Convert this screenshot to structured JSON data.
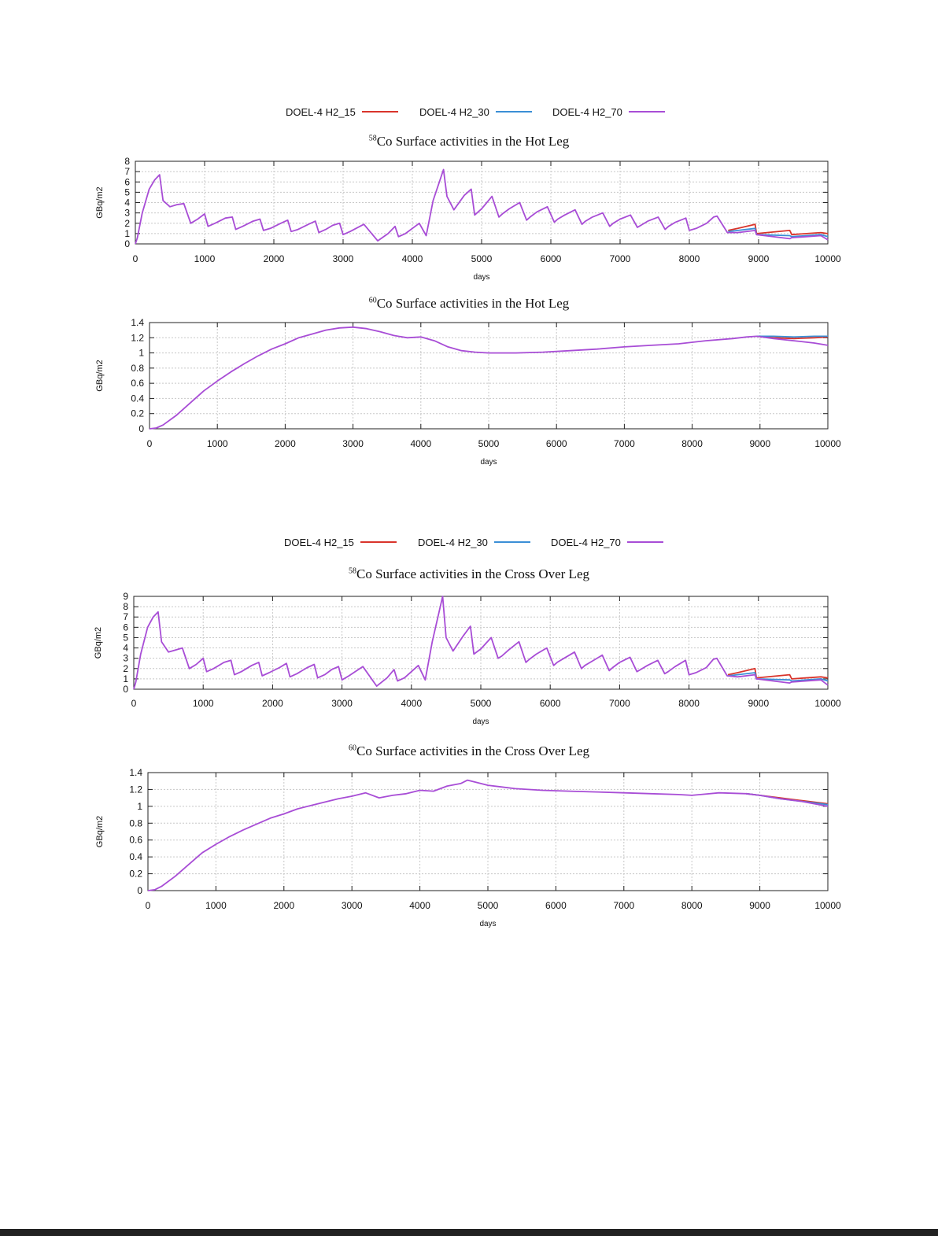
{
  "legends": [
    {
      "items": [
        {
          "label": "DOEL-4 H2_15",
          "color": "#d9342b"
        },
        {
          "label": "DOEL-4 H2_30",
          "color": "#3b8fd6"
        },
        {
          "label": "DOEL-4 H2_70",
          "color": "#a84dd6"
        }
      ]
    },
    {
      "items": [
        {
          "label": "DOEL-4 H2_15",
          "color": "#d9342b"
        },
        {
          "label": "DOEL-4 H2_30",
          "color": "#3b8fd6"
        },
        {
          "label": "DOEL-4 H2_70",
          "color": "#a84dd6"
        }
      ]
    }
  ],
  "chart_data": [
    {
      "type": "line",
      "title_sup": "58",
      "title": "Co Surface  activities in the Hot Leg",
      "xlabel": "days",
      "ylabel": "GBq/m2",
      "xlim": [
        0,
        10000
      ],
      "ylim": [
        0,
        8
      ],
      "xticks": [
        0,
        1000,
        2000,
        3000,
        4000,
        5000,
        6000,
        7000,
        8000,
        9000,
        10000
      ],
      "yticks": [
        0,
        1,
        2,
        3,
        4,
        5,
        6,
        7,
        8
      ],
      "xtick_labels": [
        "0",
        "1000",
        "2000",
        "3000",
        "4000",
        "5000",
        "6000",
        "7000",
        "8000",
        "9000",
        "10000"
      ],
      "ytick_labels": [
        "0",
        "1",
        "2",
        "3",
        "4",
        "5",
        "6",
        "7",
        "8"
      ],
      "grid": true,
      "series": [
        {
          "name": "DOEL-4 H2_15",
          "color": "#d9342b",
          "x": [
            8560,
            8700,
            8950,
            8970,
            9450,
            9480,
            9900,
            10000
          ],
          "y": [
            1.3,
            1.5,
            1.9,
            1.0,
            1.3,
            0.9,
            1.1,
            1.0
          ]
        },
        {
          "name": "DOEL-4 H2_30",
          "color": "#3b8fd6",
          "x": [
            8560,
            8700,
            8950,
            8970,
            9450,
            9480,
            9900,
            10000
          ],
          "y": [
            1.2,
            1.3,
            1.5,
            0.9,
            0.8,
            0.7,
            0.9,
            0.7
          ]
        },
        {
          "name": "DOEL-4 H2_70",
          "color": "#a84dd6",
          "x": [
            0,
            30,
            100,
            200,
            280,
            350,
            400,
            500,
            600,
            700,
            800,
            900,
            1000,
            1050,
            1150,
            1300,
            1400,
            1450,
            1550,
            1700,
            1800,
            1850,
            1950,
            2100,
            2200,
            2250,
            2350,
            2500,
            2600,
            2650,
            2750,
            2850,
            2950,
            3000,
            3100,
            3300,
            3500,
            3650,
            3750,
            3800,
            3900,
            4100,
            4200,
            4300,
            4450,
            4500,
            4600,
            4750,
            4850,
            4900,
            5000,
            5150,
            5250,
            5300,
            5400,
            5550,
            5650,
            5700,
            5800,
            5950,
            6050,
            6100,
            6200,
            6350,
            6450,
            6500,
            6600,
            6750,
            6850,
            6900,
            7000,
            7150,
            7250,
            7300,
            7400,
            7550,
            7650,
            7700,
            7800,
            7950,
            8000,
            8100,
            8250,
            8350,
            8400,
            8550,
            8700,
            8950,
            8970,
            9450,
            9480,
            9900,
            10000
          ],
          "y": [
            0,
            0.6,
            3.0,
            5.3,
            6.2,
            6.7,
            4.2,
            3.6,
            3.8,
            3.9,
            2.0,
            2.4,
            2.9,
            1.7,
            2.0,
            2.5,
            2.6,
            1.4,
            1.7,
            2.2,
            2.4,
            1.3,
            1.5,
            2.0,
            2.3,
            1.2,
            1.4,
            1.9,
            2.2,
            1.1,
            1.4,
            1.8,
            2.0,
            0.9,
            1.2,
            1.9,
            0.3,
            1.0,
            1.7,
            0.7,
            1.0,
            2.0,
            0.8,
            4.2,
            7.2,
            4.6,
            3.3,
            4.7,
            5.3,
            2.8,
            3.4,
            4.6,
            2.6,
            2.9,
            3.4,
            4.0,
            2.3,
            2.6,
            3.1,
            3.6,
            2.1,
            2.4,
            2.8,
            3.3,
            1.9,
            2.2,
            2.6,
            3.0,
            1.7,
            2.0,
            2.4,
            2.8,
            1.6,
            1.8,
            2.2,
            2.6,
            1.4,
            1.7,
            2.1,
            2.5,
            1.3,
            1.5,
            2.0,
            2.6,
            2.7,
            1.1,
            1.1,
            1.3,
            0.9,
            0.5,
            0.6,
            0.8,
            0.4
          ]
        }
      ]
    },
    {
      "type": "line",
      "title_sup": "60",
      "title": "Co Surface  activities in the Hot Leg",
      "xlabel": "days",
      "ylabel": "GBq/m2",
      "xlim": [
        0,
        10000
      ],
      "ylim": [
        0,
        1.4
      ],
      "xticks": [
        0,
        1000,
        2000,
        3000,
        4000,
        5000,
        6000,
        7000,
        8000,
        9000,
        10000
      ],
      "yticks": [
        0,
        0.2,
        0.4,
        0.6,
        0.8,
        1.0,
        1.2,
        1.4
      ],
      "xtick_labels": [
        "0",
        "1000",
        "2000",
        "3000",
        "4000",
        "5000",
        "6000",
        "7000",
        "8000",
        "9000",
        "10000"
      ],
      "ytick_labels": [
        "0",
        "0.2",
        "0.4",
        "0.6",
        "0.8",
        "1",
        "1.2",
        "1.4"
      ],
      "grid": true,
      "series": [
        {
          "name": "DOEL-4 H2_15",
          "color": "#d9342b",
          "x": [
            8950,
            9200,
            9500,
            9800,
            10000
          ],
          "y": [
            1.22,
            1.2,
            1.19,
            1.2,
            1.21
          ]
        },
        {
          "name": "DOEL-4 H2_30",
          "color": "#3b8fd6",
          "x": [
            8950,
            9200,
            9500,
            9800,
            10000
          ],
          "y": [
            1.22,
            1.22,
            1.21,
            1.22,
            1.22
          ]
        },
        {
          "name": "DOEL-4 H2_70",
          "color": "#a84dd6",
          "x": [
            0,
            100,
            200,
            400,
            600,
            800,
            1000,
            1200,
            1400,
            1600,
            1800,
            2000,
            2200,
            2400,
            2600,
            2800,
            3000,
            3200,
            3400,
            3600,
            3800,
            4000,
            4200,
            4400,
            4600,
            4800,
            5000,
            5400,
            5800,
            6200,
            6600,
            7000,
            7400,
            7800,
            8200,
            8600,
            8800,
            8950,
            9200,
            9500,
            9800,
            10000
          ],
          "y": [
            0,
            0.01,
            0.05,
            0.18,
            0.34,
            0.5,
            0.63,
            0.75,
            0.86,
            0.96,
            1.05,
            1.12,
            1.2,
            1.25,
            1.3,
            1.33,
            1.34,
            1.32,
            1.28,
            1.23,
            1.2,
            1.21,
            1.16,
            1.08,
            1.03,
            1.01,
            1.0,
            1.0,
            1.01,
            1.03,
            1.05,
            1.08,
            1.1,
            1.12,
            1.16,
            1.19,
            1.21,
            1.22,
            1.19,
            1.16,
            1.13,
            1.1
          ]
        }
      ]
    },
    {
      "type": "line",
      "title_sup": "58",
      "title": "Co Surface  activities in the Cross Over Leg",
      "xlabel": "days",
      "ylabel": "GBq/m2",
      "xlim": [
        0,
        10000
      ],
      "ylim": [
        0,
        9
      ],
      "xticks": [
        0,
        1000,
        2000,
        3000,
        4000,
        5000,
        6000,
        7000,
        8000,
        9000,
        10000
      ],
      "yticks": [
        0,
        1,
        2,
        3,
        4,
        5,
        6,
        7,
        8,
        9
      ],
      "xtick_labels": [
        "0",
        "1000",
        "2000",
        "3000",
        "4000",
        "5000",
        "6000",
        "7000",
        "8000",
        "9000",
        "10000"
      ],
      "ytick_labels": [
        "0",
        "1",
        "2",
        "3",
        "4",
        "5",
        "6",
        "7",
        "8",
        "9"
      ],
      "grid": true,
      "series": [
        {
          "name": "DOEL-4 H2_15",
          "color": "#d9342b",
          "x": [
            8560,
            8700,
            8950,
            8970,
            9450,
            9480,
            9900,
            10000
          ],
          "y": [
            1.4,
            1.6,
            2.0,
            1.1,
            1.4,
            1.0,
            1.2,
            1.1
          ]
        },
        {
          "name": "DOEL-4 H2_30",
          "color": "#3b8fd6",
          "x": [
            8560,
            8700,
            8950,
            8970,
            9450,
            9480,
            9900,
            10000
          ],
          "y": [
            1.3,
            1.4,
            1.6,
            1.0,
            0.9,
            0.8,
            1.0,
            0.8
          ]
        },
        {
          "name": "DOEL-4 H2_70",
          "color": "#a84dd6",
          "x": [
            0,
            30,
            100,
            200,
            280,
            350,
            400,
            500,
            600,
            700,
            800,
            900,
            1000,
            1050,
            1150,
            1300,
            1400,
            1450,
            1550,
            1700,
            1800,
            1850,
            1950,
            2100,
            2200,
            2250,
            2350,
            2500,
            2600,
            2650,
            2750,
            2850,
            2950,
            3000,
            3100,
            3300,
            3500,
            3650,
            3750,
            3800,
            3900,
            4100,
            4200,
            4300,
            4450,
            4500,
            4600,
            4750,
            4850,
            4900,
            5000,
            5150,
            5250,
            5300,
            5400,
            5550,
            5650,
            5700,
            5800,
            5950,
            6050,
            6100,
            6200,
            6350,
            6450,
            6500,
            6600,
            6750,
            6850,
            6900,
            7000,
            7150,
            7250,
            7300,
            7400,
            7550,
            7650,
            7700,
            7800,
            7950,
            8000,
            8100,
            8250,
            8350,
            8400,
            8550,
            8700,
            8950,
            8970,
            9450,
            9480,
            9900,
            10000
          ],
          "y": [
            0,
            0.7,
            3.4,
            6.0,
            7.0,
            7.5,
            4.6,
            3.6,
            3.8,
            4.0,
            2.0,
            2.4,
            3.0,
            1.7,
            2.0,
            2.6,
            2.8,
            1.4,
            1.7,
            2.3,
            2.6,
            1.3,
            1.6,
            2.1,
            2.5,
            1.2,
            1.5,
            2.1,
            2.4,
            1.1,
            1.4,
            1.9,
            2.2,
            0.9,
            1.3,
            2.2,
            0.3,
            1.1,
            1.9,
            0.8,
            1.1,
            2.3,
            0.9,
            4.6,
            9.0,
            5.0,
            3.7,
            5.2,
            6.1,
            3.4,
            3.9,
            5.0,
            3.0,
            3.2,
            3.8,
            4.6,
            2.6,
            2.9,
            3.4,
            4.0,
            2.3,
            2.6,
            3.0,
            3.6,
            2.0,
            2.3,
            2.7,
            3.3,
            1.8,
            2.1,
            2.6,
            3.1,
            1.7,
            1.9,
            2.3,
            2.8,
            1.5,
            1.7,
            2.2,
            2.8,
            1.4,
            1.6,
            2.1,
            2.9,
            3.0,
            1.3,
            1.2,
            1.4,
            1.0,
            0.6,
            0.7,
            0.9,
            0.4
          ]
        }
      ]
    },
    {
      "type": "line",
      "title_sup": "60",
      "title": "Co Surface  activities in the Cross Over Leg",
      "xlabel": "days",
      "ylabel": "GBq/m2",
      "xlim": [
        0,
        10000
      ],
      "ylim": [
        0,
        1.4
      ],
      "xticks": [
        0,
        1000,
        2000,
        3000,
        4000,
        5000,
        6000,
        7000,
        8000,
        9000,
        10000
      ],
      "yticks": [
        0,
        0.2,
        0.4,
        0.6,
        0.8,
        1.0,
        1.2,
        1.4
      ],
      "xtick_labels": [
        "0",
        "1000",
        "2000",
        "3000",
        "4000",
        "5000",
        "6000",
        "7000",
        "8000",
        "9000",
        "10000"
      ],
      "ytick_labels": [
        "0",
        "0.2",
        "0.4",
        "0.6",
        "0.8",
        "1",
        "1.2",
        "1.4"
      ],
      "grid": true,
      "series": [
        {
          "name": "DOEL-4 H2_15",
          "color": "#d9342b",
          "x": [
            8800,
            9000,
            9300,
            9600,
            10000
          ],
          "y": [
            1.15,
            1.13,
            1.1,
            1.07,
            1.03
          ]
        },
        {
          "name": "DOEL-4 H2_30",
          "color": "#3b8fd6",
          "x": [
            8800,
            9000,
            9300,
            9600,
            10000
          ],
          "y": [
            1.15,
            1.13,
            1.09,
            1.06,
            1.02
          ]
        },
        {
          "name": "DOEL-4 H2_70",
          "color": "#a84dd6",
          "x": [
            0,
            100,
            200,
            400,
            600,
            800,
            1000,
            1200,
            1400,
            1600,
            1800,
            2000,
            2200,
            2400,
            2600,
            2800,
            3000,
            3200,
            3400,
            3600,
            3800,
            4000,
            4200,
            4400,
            4600,
            4700,
            4800,
            5000,
            5400,
            5800,
            6200,
            6600,
            7000,
            7400,
            7800,
            8000,
            8400,
            8800,
            9000,
            9300,
            9600,
            10000
          ],
          "y": [
            0,
            0.01,
            0.05,
            0.17,
            0.31,
            0.45,
            0.55,
            0.64,
            0.72,
            0.79,
            0.86,
            0.91,
            0.97,
            1.01,
            1.05,
            1.09,
            1.12,
            1.16,
            1.1,
            1.13,
            1.15,
            1.19,
            1.18,
            1.24,
            1.27,
            1.31,
            1.29,
            1.25,
            1.21,
            1.19,
            1.18,
            1.17,
            1.16,
            1.15,
            1.14,
            1.13,
            1.16,
            1.15,
            1.13,
            1.09,
            1.06,
            1.0
          ]
        }
      ]
    }
  ]
}
